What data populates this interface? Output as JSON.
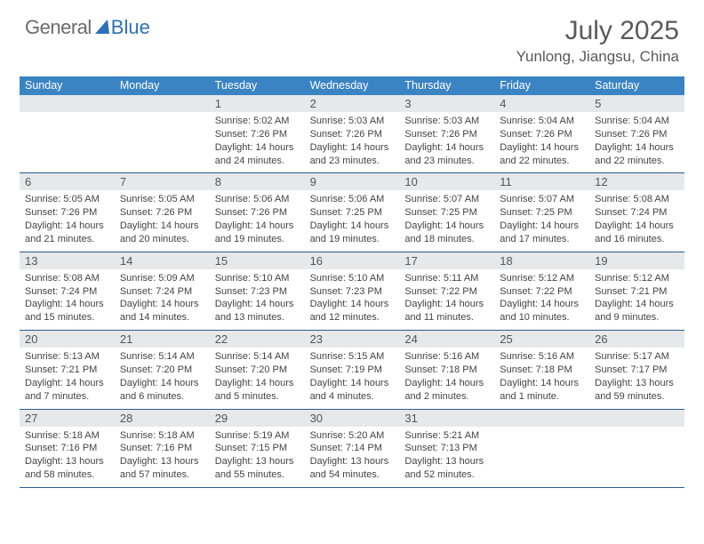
{
  "brand": {
    "text1": "General",
    "text2": "Blue"
  },
  "title": "July 2025",
  "location": "Yunlong, Jiangsu, China",
  "colors": {
    "header_bg": "#3b84c4",
    "daynum_bg": "#e7e8ea",
    "rule": "#2a5d8f",
    "brand_gray": "#6b6b6b",
    "brand_blue": "#2a71b8"
  },
  "weekdays": [
    "Sunday",
    "Monday",
    "Tuesday",
    "Wednesday",
    "Thursday",
    "Friday",
    "Saturday"
  ],
  "weeks": [
    [
      {
        "n": "",
        "sr": "",
        "ss": "",
        "dl": ""
      },
      {
        "n": "",
        "sr": "",
        "ss": "",
        "dl": ""
      },
      {
        "n": "1",
        "sr": "Sunrise: 5:02 AM",
        "ss": "Sunset: 7:26 PM",
        "dl": "Daylight: 14 hours and 24 minutes."
      },
      {
        "n": "2",
        "sr": "Sunrise: 5:03 AM",
        "ss": "Sunset: 7:26 PM",
        "dl": "Daylight: 14 hours and 23 minutes."
      },
      {
        "n": "3",
        "sr": "Sunrise: 5:03 AM",
        "ss": "Sunset: 7:26 PM",
        "dl": "Daylight: 14 hours and 23 minutes."
      },
      {
        "n": "4",
        "sr": "Sunrise: 5:04 AM",
        "ss": "Sunset: 7:26 PM",
        "dl": "Daylight: 14 hours and 22 minutes."
      },
      {
        "n": "5",
        "sr": "Sunrise: 5:04 AM",
        "ss": "Sunset: 7:26 PM",
        "dl": "Daylight: 14 hours and 22 minutes."
      }
    ],
    [
      {
        "n": "6",
        "sr": "Sunrise: 5:05 AM",
        "ss": "Sunset: 7:26 PM",
        "dl": "Daylight: 14 hours and 21 minutes."
      },
      {
        "n": "7",
        "sr": "Sunrise: 5:05 AM",
        "ss": "Sunset: 7:26 PM",
        "dl": "Daylight: 14 hours and 20 minutes."
      },
      {
        "n": "8",
        "sr": "Sunrise: 5:06 AM",
        "ss": "Sunset: 7:26 PM",
        "dl": "Daylight: 14 hours and 19 minutes."
      },
      {
        "n": "9",
        "sr": "Sunrise: 5:06 AM",
        "ss": "Sunset: 7:25 PM",
        "dl": "Daylight: 14 hours and 19 minutes."
      },
      {
        "n": "10",
        "sr": "Sunrise: 5:07 AM",
        "ss": "Sunset: 7:25 PM",
        "dl": "Daylight: 14 hours and 18 minutes."
      },
      {
        "n": "11",
        "sr": "Sunrise: 5:07 AM",
        "ss": "Sunset: 7:25 PM",
        "dl": "Daylight: 14 hours and 17 minutes."
      },
      {
        "n": "12",
        "sr": "Sunrise: 5:08 AM",
        "ss": "Sunset: 7:24 PM",
        "dl": "Daylight: 14 hours and 16 minutes."
      }
    ],
    [
      {
        "n": "13",
        "sr": "Sunrise: 5:08 AM",
        "ss": "Sunset: 7:24 PM",
        "dl": "Daylight: 14 hours and 15 minutes."
      },
      {
        "n": "14",
        "sr": "Sunrise: 5:09 AM",
        "ss": "Sunset: 7:24 PM",
        "dl": "Daylight: 14 hours and 14 minutes."
      },
      {
        "n": "15",
        "sr": "Sunrise: 5:10 AM",
        "ss": "Sunset: 7:23 PM",
        "dl": "Daylight: 14 hours and 13 minutes."
      },
      {
        "n": "16",
        "sr": "Sunrise: 5:10 AM",
        "ss": "Sunset: 7:23 PM",
        "dl": "Daylight: 14 hours and 12 minutes."
      },
      {
        "n": "17",
        "sr": "Sunrise: 5:11 AM",
        "ss": "Sunset: 7:22 PM",
        "dl": "Daylight: 14 hours and 11 minutes."
      },
      {
        "n": "18",
        "sr": "Sunrise: 5:12 AM",
        "ss": "Sunset: 7:22 PM",
        "dl": "Daylight: 14 hours and 10 minutes."
      },
      {
        "n": "19",
        "sr": "Sunrise: 5:12 AM",
        "ss": "Sunset: 7:21 PM",
        "dl": "Daylight: 14 hours and 9 minutes."
      }
    ],
    [
      {
        "n": "20",
        "sr": "Sunrise: 5:13 AM",
        "ss": "Sunset: 7:21 PM",
        "dl": "Daylight: 14 hours and 7 minutes."
      },
      {
        "n": "21",
        "sr": "Sunrise: 5:14 AM",
        "ss": "Sunset: 7:20 PM",
        "dl": "Daylight: 14 hours and 6 minutes."
      },
      {
        "n": "22",
        "sr": "Sunrise: 5:14 AM",
        "ss": "Sunset: 7:20 PM",
        "dl": "Daylight: 14 hours and 5 minutes."
      },
      {
        "n": "23",
        "sr": "Sunrise: 5:15 AM",
        "ss": "Sunset: 7:19 PM",
        "dl": "Daylight: 14 hours and 4 minutes."
      },
      {
        "n": "24",
        "sr": "Sunrise: 5:16 AM",
        "ss": "Sunset: 7:18 PM",
        "dl": "Daylight: 14 hours and 2 minutes."
      },
      {
        "n": "25",
        "sr": "Sunrise: 5:16 AM",
        "ss": "Sunset: 7:18 PM",
        "dl": "Daylight: 14 hours and 1 minute."
      },
      {
        "n": "26",
        "sr": "Sunrise: 5:17 AM",
        "ss": "Sunset: 7:17 PM",
        "dl": "Daylight: 13 hours and 59 minutes."
      }
    ],
    [
      {
        "n": "27",
        "sr": "Sunrise: 5:18 AM",
        "ss": "Sunset: 7:16 PM",
        "dl": "Daylight: 13 hours and 58 minutes."
      },
      {
        "n": "28",
        "sr": "Sunrise: 5:18 AM",
        "ss": "Sunset: 7:16 PM",
        "dl": "Daylight: 13 hours and 57 minutes."
      },
      {
        "n": "29",
        "sr": "Sunrise: 5:19 AM",
        "ss": "Sunset: 7:15 PM",
        "dl": "Daylight: 13 hours and 55 minutes."
      },
      {
        "n": "30",
        "sr": "Sunrise: 5:20 AM",
        "ss": "Sunset: 7:14 PM",
        "dl": "Daylight: 13 hours and 54 minutes."
      },
      {
        "n": "31",
        "sr": "Sunrise: 5:21 AM",
        "ss": "Sunset: 7:13 PM",
        "dl": "Daylight: 13 hours and 52 minutes."
      },
      {
        "n": "",
        "sr": "",
        "ss": "",
        "dl": ""
      },
      {
        "n": "",
        "sr": "",
        "ss": "",
        "dl": ""
      }
    ]
  ]
}
